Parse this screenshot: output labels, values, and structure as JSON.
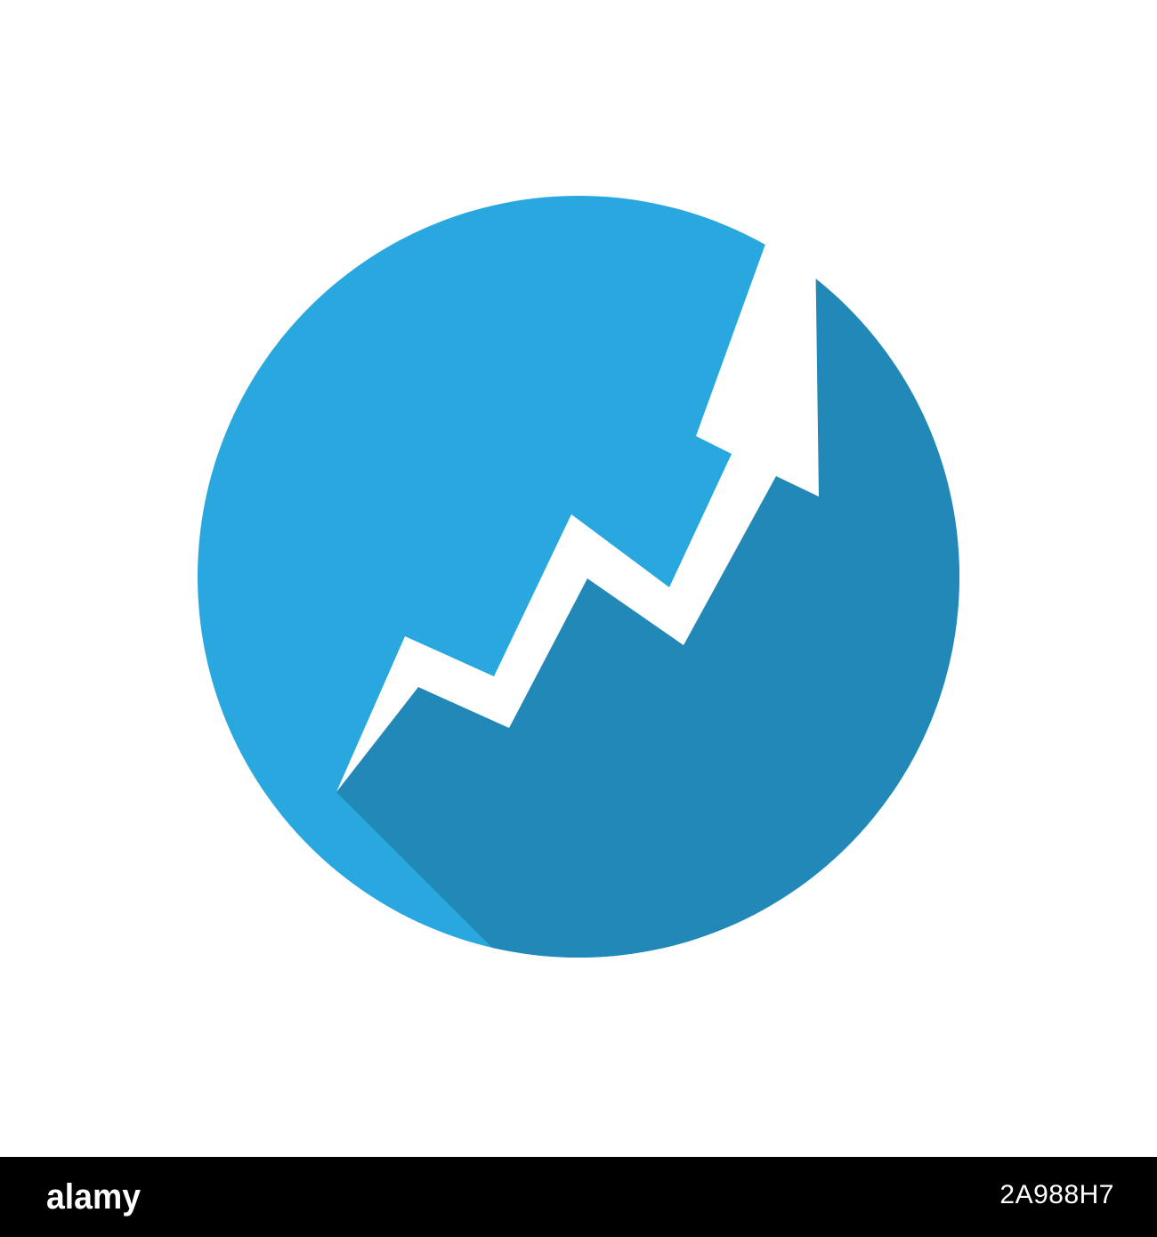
{
  "icon": {
    "name": "trending-up-arrow-icon",
    "circle_color": "#29a8e0",
    "shadow_color": "#2288b8",
    "arrow_color": "#ffffff"
  },
  "watermark": {
    "text": "alamy",
    "color": "#ffffff"
  },
  "footer": {
    "background": "#000000",
    "logo_text": "alamy",
    "image_id": "2A988H7"
  }
}
